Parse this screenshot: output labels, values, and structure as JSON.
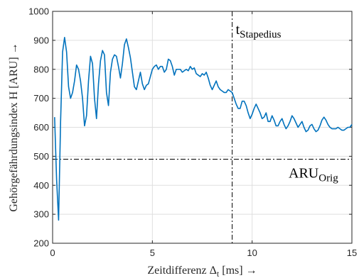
{
  "chart_data": {
    "type": "line",
    "xlabel": "Zeitdifferenz Δ",
    "xlabel_sub": "t",
    "xlabel_suffix": " [ms] →",
    "ylabel": "Gehörgefährdungsindex H [ARU] →",
    "xlim": [
      0,
      15
    ],
    "ylim": [
      200,
      1000
    ],
    "xticks": [
      0,
      5,
      10,
      15
    ],
    "yticks": [
      200,
      300,
      400,
      500,
      600,
      700,
      800,
      900,
      1000
    ],
    "grid": true,
    "colors": {
      "series": "#0072BD",
      "reference": "#000000",
      "grid": "#dfdfdf",
      "axis": "#262626"
    },
    "series": [
      {
        "x": [
          0.1,
          0.2,
          0.3,
          0.4,
          0.5,
          0.6,
          0.7,
          0.8,
          0.9,
          1.0,
          1.1,
          1.2,
          1.3,
          1.4,
          1.5,
          1.6,
          1.7,
          1.8,
          1.9,
          2.0,
          2.1,
          2.2,
          2.3,
          2.4,
          2.5,
          2.6,
          2.7,
          2.8,
          2.9,
          3.0,
          3.1,
          3.2,
          3.3,
          3.4,
          3.5,
          3.6,
          3.7,
          3.8,
          3.9,
          4.0,
          4.1,
          4.2,
          4.3,
          4.4,
          4.5,
          4.6,
          4.7,
          4.8,
          4.9,
          5.0,
          5.1,
          5.2,
          5.3,
          5.4,
          5.5,
          5.6,
          5.7,
          5.8,
          5.9,
          6.0,
          6.1,
          6.2,
          6.3,
          6.4,
          6.5,
          6.6,
          6.7,
          6.8,
          6.9,
          7.0,
          7.1,
          7.2,
          7.3,
          7.4,
          7.5,
          7.6,
          7.7,
          7.8,
          7.9,
          8.0,
          8.1,
          8.2,
          8.3,
          8.4,
          8.5,
          8.6,
          8.7,
          8.8,
          8.9,
          9.0,
          9.1,
          9.2,
          9.3,
          9.4,
          9.5,
          9.6,
          9.7,
          9.8,
          9.9,
          10.0,
          10.1,
          10.2,
          10.3,
          10.4,
          10.5,
          10.6,
          10.7,
          10.8,
          10.9,
          11.0,
          11.1,
          11.2,
          11.3,
          11.4,
          11.5,
          11.6,
          11.7,
          11.8,
          11.9,
          12.0,
          12.1,
          12.2,
          12.3,
          12.4,
          12.5,
          12.6,
          12.7,
          12.8,
          12.9,
          13.0,
          13.1,
          13.2,
          13.3,
          13.4,
          13.5,
          13.6,
          13.7,
          13.8,
          13.9,
          14.0,
          14.1,
          14.2,
          14.3,
          14.4,
          14.5,
          14.6,
          14.7,
          14.8,
          14.9,
          15.0
        ],
        "y": [
          635,
          420,
          280,
          620,
          860,
          910,
          860,
          740,
          700,
          720,
          760,
          815,
          800,
          760,
          700,
          605,
          640,
          760,
          845,
          820,
          700,
          630,
          750,
          830,
          865,
          850,
          720,
          675,
          790,
          835,
          850,
          845,
          810,
          770,
          820,
          885,
          905,
          875,
          840,
          790,
          740,
          730,
          760,
          790,
          750,
          730,
          745,
          750,
          775,
          800,
          810,
          815,
          800,
          810,
          810,
          790,
          800,
          835,
          830,
          810,
          780,
          800,
          800,
          800,
          790,
          795,
          800,
          795,
          810,
          800,
          805,
          785,
          780,
          775,
          785,
          780,
          790,
          770,
          745,
          730,
          745,
          760,
          740,
          730,
          725,
          720,
          720,
          730,
          725,
          720,
          700,
          680,
          665,
          665,
          690,
          690,
          675,
          650,
          630,
          645,
          665,
          680,
          665,
          650,
          630,
          635,
          650,
          620,
          620,
          640,
          625,
          605,
          605,
          620,
          630,
          610,
          595,
          605,
          620,
          640,
          630,
          615,
          600,
          610,
          620,
          600,
          585,
          590,
          605,
          610,
          595,
          585,
          590,
          605,
          625,
          635,
          625,
          610,
          600,
          595,
          595,
          595,
          600,
          595,
          590,
          590,
          595,
          600,
          600,
          610
        ]
      }
    ],
    "reference_lines": {
      "horizontal": {
        "y": 490,
        "label": "ARU",
        "label_sub": "Orig"
      },
      "vertical": {
        "x": 9.0,
        "label": "t",
        "label_sub": "Stapedius"
      }
    }
  }
}
